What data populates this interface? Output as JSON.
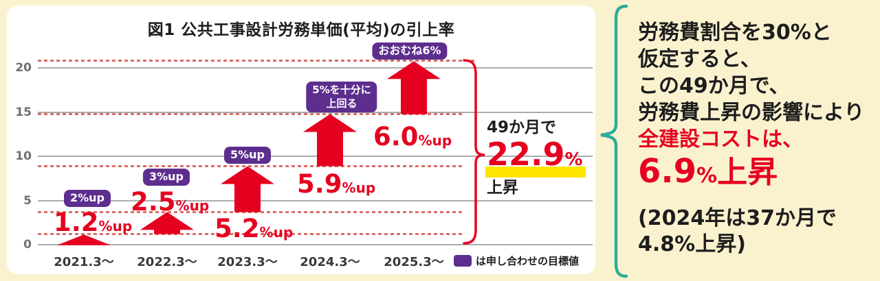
{
  "chart_data": {
    "type": "bar",
    "title": "図1 公共工事設計労務単価(平均)の引上率",
    "categories": [
      "2021.3～",
      "2022.3～",
      "2023.3～",
      "2024.3～",
      "2025.3～"
    ],
    "values": [
      1.2,
      2.5,
      5.2,
      5.9,
      6.0
    ],
    "value_labels": [
      "1.2",
      "2.5",
      "5.2",
      "5.9",
      "6.0"
    ],
    "unit_suffix": "%up",
    "cumulative": [
      1.2,
      3.7,
      8.9,
      14.8,
      20.8
    ],
    "targets": [
      "2%up",
      "3%up",
      "5%up",
      "5%を十分に\n上回る",
      "おおむね6%"
    ],
    "yticks": [
      0,
      5,
      10,
      15,
      20
    ],
    "ylim": [
      0,
      21.5
    ],
    "grid": true,
    "legend_note": "は申し合わせの目標値",
    "summary": {
      "period": "49か月で",
      "value": "22.9",
      "unit": "%",
      "suffix": "上昇"
    }
  },
  "note_panel": {
    "lines": [
      "労務費割合を30%と",
      "仮定すると、",
      "この49か月で、",
      "労務費上昇の影響により"
    ],
    "red_line": "全建設コストは、",
    "big": {
      "value": "6.9",
      "unit": "%",
      "suffix": "上昇"
    },
    "paren_lines": [
      "(2024年は37か月で",
      "4.8%上昇)"
    ]
  },
  "colors": {
    "accent_red": "#E60020",
    "target_purple": "#5D2E8E",
    "note_teal": "#2CAD99",
    "highlight_yellow": "#FFE400",
    "background_cream": "#FAF2CF",
    "dash_red": "#D96E68",
    "grid_gray": "#ACACAE",
    "axis_gray": "#6E7074"
  }
}
